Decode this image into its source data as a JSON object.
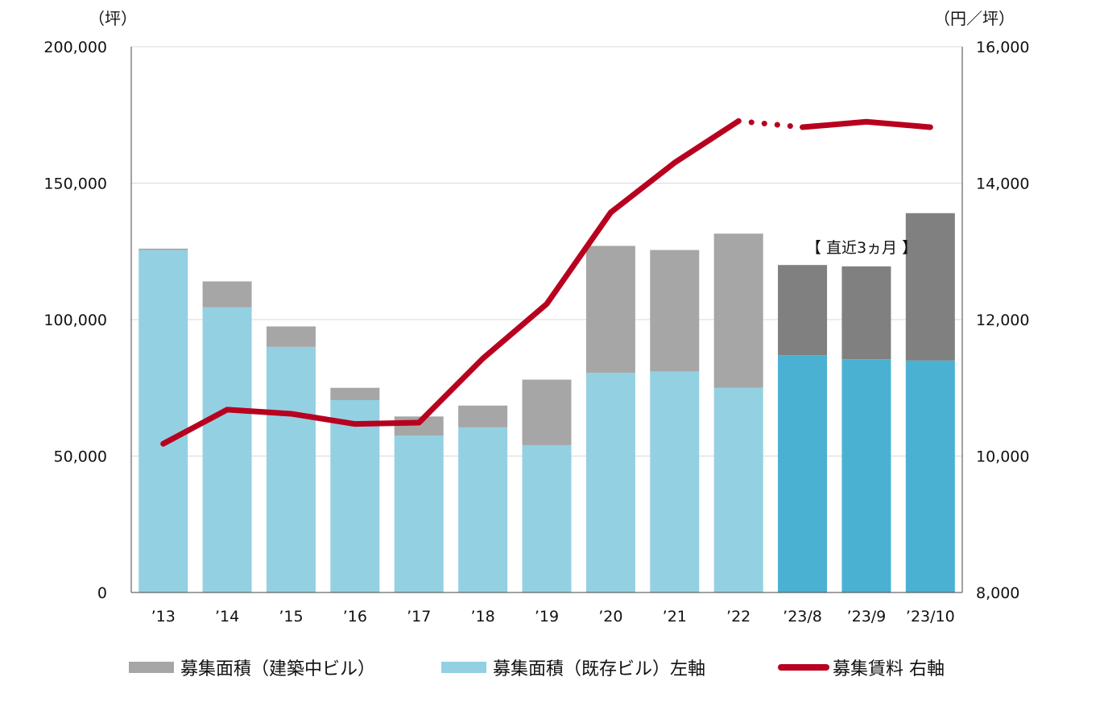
{
  "chart_data": {
    "type": "bar",
    "stacked": true,
    "categories": [
      "’13",
      "’14",
      "’15",
      "’16",
      "’17",
      "’18",
      "’19",
      "’20",
      "’21",
      "’22",
      "’23/8",
      "’23/9",
      "’23/10"
    ],
    "series": [
      {
        "name": "募集面積（既存ビル）左軸",
        "axis": "left",
        "values": [
          125500,
          104500,
          90000,
          70500,
          57500,
          60500,
          54000,
          80500,
          81000,
          75000,
          87000,
          85500,
          85000
        ]
      },
      {
        "name": "募集面積（建築中ビル）",
        "axis": "left",
        "values": [
          500,
          9500,
          7500,
          4500,
          7000,
          8000,
          24000,
          46500,
          44500,
          56500,
          33000,
          34000,
          54000
        ]
      },
      {
        "name": "募集賃料 右軸",
        "axis": "right",
        "type": "line",
        "values": [
          10180,
          10680,
          10620,
          10470,
          10490,
          11430,
          12230,
          13570,
          14300,
          14910,
          14820,
          14900,
          14820
        ]
      }
    ],
    "left_axis": {
      "unit": "（坪）",
      "ylim": [
        0,
        200000
      ],
      "ticks": [
        "0",
        "50,000",
        "100,000",
        "150,000",
        "200,000"
      ]
    },
    "right_axis": {
      "unit": "（円／坪）",
      "ylim": [
        8000,
        16000
      ],
      "ticks": [
        "8,000",
        "10,000",
        "12,000",
        "14,000",
        "16,000"
      ]
    },
    "annotation": "【 直近3ヵ月 】",
    "recent_categories_start_index": 10,
    "grid": true,
    "legend_position": "bottom",
    "colors": {
      "existing": "#93d0e2",
      "existing_recent": "#4bb1d3",
      "construction": "#a6a6a6",
      "construction_recent": "#808080",
      "rent_line": "#b8001f"
    }
  },
  "legend": [
    {
      "label": "募集面積（建築中ビル）",
      "color": "#a6a6a6"
    },
    {
      "label": "募集面積（既存ビル）左軸",
      "color": "#93d0e2"
    },
    {
      "label": "募集賃料 右軸",
      "color": "#b8001f"
    }
  ]
}
